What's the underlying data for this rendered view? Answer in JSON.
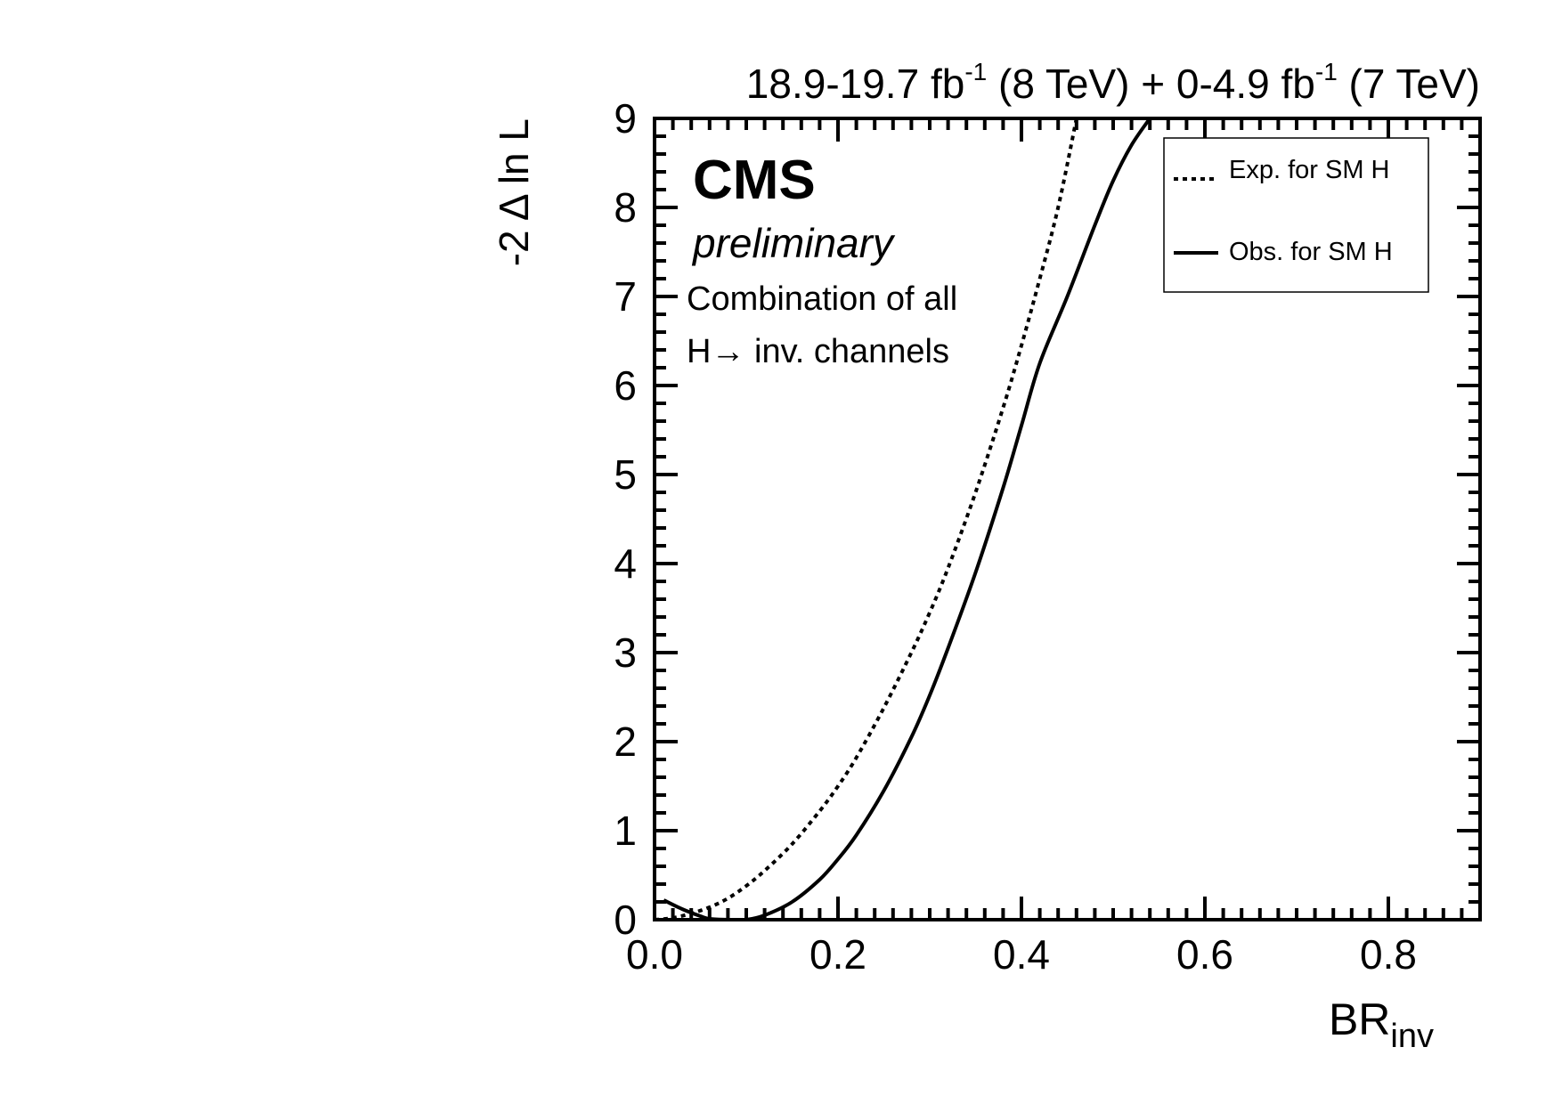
{
  "chart_data": {
    "type": "line",
    "header": {
      "lumi8": "18.9-19.7 fb",
      "lumi8_sup": "-1",
      "e8": " (8 TeV) + 0-4.9 fb",
      "lumi7_sup": "-1",
      "e7": " (7 TeV)"
    },
    "cms_label": "CMS",
    "preliminary_label": "preliminary",
    "annotation_line1": "Combination of all",
    "annotation_line2": "H→ inv. channels",
    "xlabel": "BR",
    "xlabel_sub": "inv",
    "ylabel": "-2 Δ ln L",
    "xlim": [
      0.0,
      0.9
    ],
    "ylim": [
      0,
      9
    ],
    "x_ticks": [
      "0.0",
      "0.2",
      "0.4",
      "0.6",
      "0.8"
    ],
    "y_ticks": [
      "0",
      "1",
      "2",
      "3",
      "4",
      "5",
      "6",
      "7",
      "8",
      "9"
    ],
    "legend_position": "top-right",
    "series": [
      {
        "name": "Exp. for SM H",
        "style": "dotted",
        "x": [
          0.0,
          0.02,
          0.04,
          0.06,
          0.08,
          0.1,
          0.12,
          0.15,
          0.18,
          0.2,
          0.22,
          0.25,
          0.28,
          0.3,
          0.32,
          0.35,
          0.38,
          0.4,
          0.42,
          0.44,
          0.46
        ],
        "y": [
          0.0,
          0.02,
          0.07,
          0.14,
          0.24,
          0.38,
          0.55,
          0.85,
          1.22,
          1.5,
          1.82,
          2.38,
          3.0,
          3.45,
          3.95,
          4.8,
          5.75,
          6.45,
          7.2,
          8.0,
          9.0
        ]
      },
      {
        "name": "Obs. for SM H",
        "style": "solid",
        "x": [
          0.01,
          0.03,
          0.05,
          0.06,
          0.08,
          0.1,
          0.12,
          0.15,
          0.18,
          0.2,
          0.22,
          0.25,
          0.28,
          0.3,
          0.32,
          0.35,
          0.38,
          0.4,
          0.42,
          0.45,
          0.48,
          0.5,
          0.52,
          0.54
        ],
        "y": [
          0.22,
          0.12,
          0.04,
          0.01,
          0.0,
          0.0,
          0.05,
          0.2,
          0.45,
          0.68,
          0.95,
          1.45,
          2.05,
          2.52,
          3.05,
          3.9,
          4.85,
          5.55,
          6.25,
          7.0,
          7.8,
          8.3,
          8.7,
          9.0
        ]
      }
    ]
  }
}
